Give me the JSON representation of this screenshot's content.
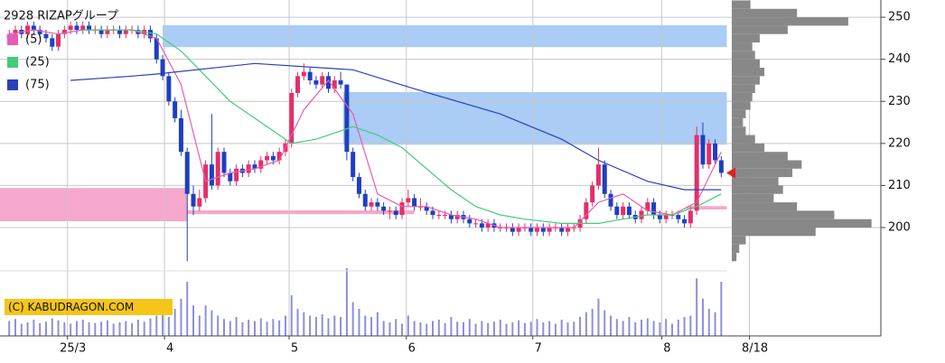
{
  "chart_data": {
    "type": "candlestick",
    "title": "2928 RIZAPグループ",
    "copyright": "(C) KABUDRAGON.COM",
    "xlim": [
      -1.5,
      142
    ],
    "xticks": [
      {
        "value": 9.5,
        "label": "25/3"
      },
      {
        "value": 25.3,
        "label": "4"
      },
      {
        "value": 45.6,
        "label": "5"
      },
      {
        "value": 64.7,
        "label": "6"
      },
      {
        "value": 85.3,
        "label": "7"
      },
      {
        "value": 106.3,
        "label": "8"
      },
      {
        "value": 120.6,
        "label": "8/18"
      }
    ],
    "ylim": [
      189.7,
      254.1
    ],
    "yticks": [
      200,
      210,
      220,
      230,
      240,
      250
    ],
    "grid": true,
    "up_color": "#e0306a",
    "down_color": "#1f3fbf",
    "candles": [
      [
        245,
        247,
        244,
        246
      ],
      [
        246,
        248,
        245,
        247
      ],
      [
        247,
        248,
        245,
        246
      ],
      [
        246,
        249,
        245,
        248
      ],
      [
        248,
        249,
        246,
        247
      ],
      [
        247,
        248,
        245,
        246
      ],
      [
        246,
        247,
        244,
        245
      ],
      [
        245,
        246,
        242,
        243
      ],
      [
        243,
        247,
        242,
        246
      ],
      [
        246,
        248,
        245,
        247
      ],
      [
        247,
        249,
        246,
        248
      ],
      [
        248,
        249,
        246,
        247
      ],
      [
        247,
        249,
        246,
        248
      ],
      [
        248,
        249,
        246,
        247
      ],
      [
        247,
        248,
        246,
        247
      ],
      [
        247,
        248,
        245,
        246
      ],
      [
        246,
        248,
        245,
        247
      ],
      [
        247,
        248,
        246,
        247
      ],
      [
        247,
        248,
        245,
        246
      ],
      [
        246,
        248,
        245,
        247
      ],
      [
        247,
        248,
        246,
        247
      ],
      [
        247,
        248,
        245,
        246
      ],
      [
        246,
        248,
        245,
        247
      ],
      [
        247,
        248,
        244,
        245
      ],
      [
        245,
        246,
        239,
        240
      ],
      [
        240,
        241,
        235,
        236
      ],
      [
        236,
        237,
        229,
        230
      ],
      [
        230,
        231,
        225,
        226
      ],
      [
        226,
        228,
        217,
        218
      ],
      [
        218,
        219,
        192,
        208
      ],
      [
        208,
        210,
        203,
        205
      ],
      [
        205,
        209,
        204,
        207
      ],
      [
        207,
        216,
        206,
        215
      ],
      [
        215,
        227,
        209,
        210
      ],
      [
        210,
        219,
        209,
        218
      ],
      [
        218,
        219,
        212,
        213
      ],
      [
        213,
        214,
        210,
        211
      ],
      [
        211,
        215,
        210,
        214
      ],
      [
        214,
        215,
        212,
        213
      ],
      [
        213,
        216,
        212,
        215
      ],
      [
        215,
        216,
        213,
        214
      ],
      [
        214,
        217,
        213,
        216
      ],
      [
        216,
        218,
        215,
        217
      ],
      [
        217,
        218,
        215,
        216
      ],
      [
        216,
        219,
        215,
        218
      ],
      [
        218,
        221,
        217,
        220
      ],
      [
        220,
        233,
        219,
        232
      ],
      [
        232,
        237,
        231,
        236
      ],
      [
        236,
        239,
        235,
        237
      ],
      [
        237,
        238,
        234,
        235
      ],
      [
        235,
        236,
        233,
        234
      ],
      [
        234,
        237,
        233,
        236
      ],
      [
        236,
        237,
        232,
        233
      ],
      [
        233,
        236,
        232,
        235
      ],
      [
        235,
        237,
        233,
        234
      ],
      [
        234,
        234,
        216,
        218
      ],
      [
        218,
        219,
        211,
        212
      ],
      [
        212,
        213,
        207,
        208
      ],
      [
        208,
        209,
        204,
        205
      ],
      [
        205,
        207,
        204,
        206
      ],
      [
        206,
        207,
        204,
        205
      ],
      [
        205,
        206,
        203,
        204
      ],
      [
        204,
        205,
        202,
        204
      ],
      [
        204,
        205,
        202,
        203
      ],
      [
        203,
        207,
        202,
        206
      ],
      [
        206,
        209,
        205,
        207
      ],
      [
        207,
        208,
        204,
        205
      ],
      [
        205,
        207,
        204,
        205
      ],
      [
        205,
        206,
        203,
        204
      ],
      [
        204,
        205,
        202,
        203
      ],
      [
        203,
        204,
        202,
        203
      ],
      [
        203,
        204,
        202,
        203
      ],
      [
        203,
        204,
        201,
        202
      ],
      [
        202,
        204,
        201,
        203
      ],
      [
        203,
        204,
        201,
        202
      ],
      [
        202,
        203,
        200,
        201
      ],
      [
        201,
        202,
        200,
        201
      ],
      [
        201,
        202,
        199,
        200
      ],
      [
        200,
        202,
        199,
        201
      ],
      [
        201,
        202,
        199,
        200
      ],
      [
        200,
        201,
        199,
        200
      ],
      [
        200,
        201,
        199,
        200
      ],
      [
        200,
        201,
        198,
        199
      ],
      [
        199,
        201,
        198,
        200
      ],
      [
        200,
        201,
        199,
        200
      ],
      [
        200,
        201,
        198,
        199
      ],
      [
        199,
        201,
        198,
        200
      ],
      [
        200,
        201,
        198,
        199
      ],
      [
        199,
        201,
        198,
        200
      ],
      [
        200,
        201,
        199,
        200
      ],
      [
        200,
        201,
        198,
        199
      ],
      [
        199,
        201,
        198,
        200
      ],
      [
        200,
        201,
        199,
        200
      ],
      [
        200,
        203,
        199,
        202
      ],
      [
        202,
        207,
        201,
        206
      ],
      [
        206,
        211,
        205,
        210
      ],
      [
        210,
        219,
        209,
        215
      ],
      [
        215,
        216,
        207,
        208
      ],
      [
        208,
        209,
        204,
        205
      ],
      [
        205,
        206,
        202,
        203
      ],
      [
        203,
        206,
        202,
        205
      ],
      [
        205,
        206,
        202,
        203
      ],
      [
        203,
        204,
        201,
        202
      ],
      [
        202,
        205,
        201,
        204
      ],
      [
        204,
        207,
        203,
        206
      ],
      [
        206,
        207,
        202,
        203
      ],
      [
        203,
        204,
        201,
        202
      ],
      [
        202,
        204,
        201,
        203
      ],
      [
        203,
        204,
        202,
        203
      ],
      [
        203,
        204,
        201,
        202
      ],
      [
        202,
        203,
        200,
        201
      ],
      [
        201,
        205,
        200,
        204
      ],
      [
        204,
        224,
        203,
        222
      ],
      [
        222,
        225,
        214,
        215
      ],
      [
        215,
        221,
        214,
        220
      ],
      [
        220,
        221,
        215,
        216
      ],
      [
        216,
        217,
        212,
        213
      ]
    ],
    "volume": [
      22,
      25,
      18,
      20,
      24,
      19,
      21,
      26,
      23,
      20,
      18,
      22,
      24,
      20,
      19,
      21,
      23,
      18,
      20,
      22,
      19,
      24,
      21,
      26,
      30,
      35,
      28,
      40,
      55,
      80,
      45,
      30,
      45,
      38,
      30,
      25,
      22,
      28,
      20,
      24,
      22,
      26,
      21,
      25,
      23,
      30,
      60,
      40,
      35,
      30,
      28,
      32,
      26,
      30,
      28,
      100,
      50,
      40,
      30,
      28,
      35,
      22,
      20,
      25,
      18,
      30,
      22,
      20,
      18,
      22,
      24,
      19,
      28,
      21,
      20,
      25,
      18,
      22,
      19,
      21,
      24,
      18,
      20,
      23,
      19,
      21,
      25,
      20,
      22,
      18,
      24,
      20,
      21,
      28,
      35,
      40,
      55,
      38,
      30,
      25,
      22,
      28,
      20,
      24,
      26,
      22,
      20,
      25,
      18,
      24,
      28,
      30,
      85,
      55,
      40,
      35,
      80
    ],
    "volume_ylim": [
      0,
      100
    ],
    "volume_color": "#8c90d6",
    "series": [
      {
        "name": "(5)",
        "color": "#e65cb5",
        "x": [
          0,
          4,
          8,
          12,
          16,
          20,
          24,
          28,
          32,
          36,
          40,
          44,
          48,
          52,
          56,
          60,
          64,
          68,
          72,
          76,
          80,
          84,
          88,
          92,
          96,
          100,
          104,
          108,
          112,
          116
        ],
        "values": [
          246,
          247,
          246,
          247,
          247,
          247,
          245,
          234,
          211,
          213,
          214,
          216,
          228,
          235,
          227,
          208,
          205,
          205,
          203,
          202,
          200,
          200,
          200,
          200,
          206,
          208,
          204,
          203,
          206,
          218
        ]
      },
      {
        "name": "(25)",
        "color": "#44cc77",
        "x": [
          12,
          20,
          24,
          28,
          32,
          36,
          40,
          44,
          46,
          50,
          54,
          56,
          60,
          64,
          68,
          72,
          76,
          80,
          84,
          90,
          96,
          100,
          104,
          108,
          112,
          116
        ],
        "values": [
          247,
          247,
          246,
          242,
          236,
          230,
          226,
          222,
          220,
          221,
          223,
          224,
          222,
          219,
          214,
          209,
          205,
          203,
          202,
          201,
          201,
          202,
          203,
          203,
          205,
          208
        ]
      },
      {
        "name": "(75)",
        "color": "#2a3fbf",
        "x": [
          10,
          20,
          24,
          40,
          56,
          66,
          80,
          90,
          96,
          104,
          110,
          116
        ],
        "values": [
          235,
          236,
          236.5,
          239,
          237.5,
          233,
          227,
          221,
          216,
          211,
          209,
          209
        ]
      }
    ],
    "zones": [
      {
        "x": [
          25,
          116.9
        ],
        "y": [
          242.9,
          248.1
        ],
        "color": "#aaccf5"
      },
      {
        "x": [
          54.4,
          116.9
        ],
        "y": [
          219.7,
          232.2
        ],
        "color": "#aaccf5"
      },
      {
        "x": [
          -1.5,
          29
        ],
        "y": [
          201.5,
          209.4
        ],
        "color": "#f5a8cc"
      },
      {
        "x": [
          29,
          66
        ],
        "y": [
          203.2,
          204.1
        ],
        "color": "#f5a8cc"
      },
      {
        "x": [
          110.3,
          116.9
        ],
        "y": [
          204.3,
          205.1
        ],
        "color": "#f5a8cc"
      }
    ],
    "profile": {
      "bins": [
        192,
        194,
        196,
        198,
        200,
        202,
        204,
        206,
        208,
        210,
        212,
        214,
        216,
        218,
        220,
        222,
        224,
        226,
        228,
        230,
        232,
        234,
        236,
        238,
        240,
        242,
        244,
        246,
        248,
        250,
        252,
        254
      ],
      "counts": [
        5,
        8,
        15,
        90,
        150,
        110,
        70,
        45,
        55,
        50,
        65,
        75,
        60,
        35,
        25,
        15,
        12,
        15,
        20,
        22,
        25,
        30,
        35,
        30,
        25,
        22,
        30,
        60,
        125,
        70,
        20
      ],
      "xlim": [
        0,
        160
      ],
      "color": "#888888"
    }
  }
}
